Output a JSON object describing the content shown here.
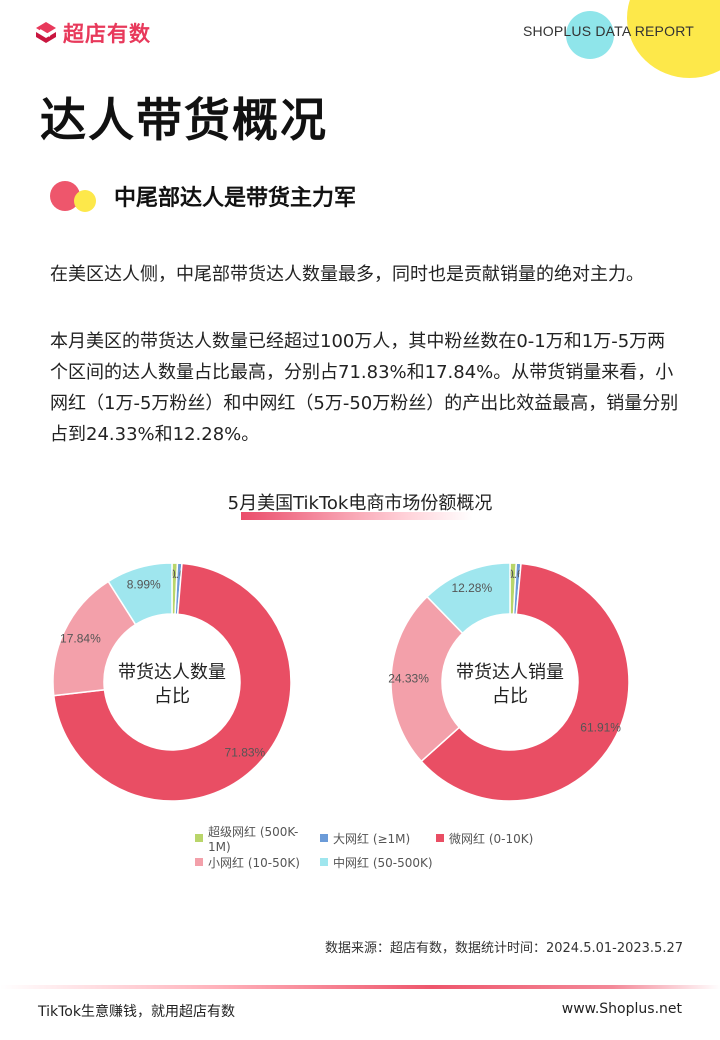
{
  "brand": {
    "logo_text": "超店有数",
    "report_label": "SHOPLUS DATA REPORT",
    "accent": "#e8395b"
  },
  "page": {
    "title": "达人带货概况",
    "section_title": "中尾部达人是带货主力军",
    "paragraph1": "在美区达人侧，中尾部带货达人数量最多，同时也是贡献销量的绝对主力。",
    "paragraph2": "本月美区的带货达人数量已经超过100万人，其中粉丝数在0-1万和1万-5万两个区间的达人数量占比最高，分别占71.83%和17.84%。从带货销量来看，小网红（1万-5万粉丝）和中网红（5万-50万粉丝）的产出比效益最高，销量分别占到24.33%和12.28%。"
  },
  "chart_data": {
    "type": "pie",
    "title": "5月美国TikTok电商市场份额概况",
    "categories": [
      "超级网红 (500K-1M)",
      "大网红 (≥1M)",
      "微网红 (0-10K)",
      "小网红 (10-50K)",
      "中网红 (50-500K)"
    ],
    "colors": [
      "#b9d56a",
      "#6b9bd8",
      "#e94e64",
      "#f3a0aa",
      "#9fe6ee"
    ],
    "series": [
      {
        "name": "带货达人数量占比",
        "center_label": [
          "带货达人数量",
          "占比"
        ],
        "values": [
          0.73,
          0.61,
          71.83,
          17.84,
          8.99
        ],
        "labels": [
          "0.73%",
          "0.61%",
          "71.83%",
          "17.84%",
          "8.99%"
        ]
      },
      {
        "name": "带货达人销量占比",
        "center_label": [
          "带货达人销量",
          "占比"
        ],
        "values": [
          0.84,
          0.64,
          61.91,
          24.33,
          12.28
        ],
        "labels": [
          "0.84%",
          "0.64%",
          "61.91%",
          "24.33%",
          "12.28%"
        ]
      }
    ],
    "legend_position": "bottom"
  },
  "source": "数据来源：超店有数，数据统计时间：2024.5.01-2023.5.27",
  "footer": {
    "left": "TikTok生意赚钱，就用超店有数",
    "right": "www.Shoplus.net"
  }
}
